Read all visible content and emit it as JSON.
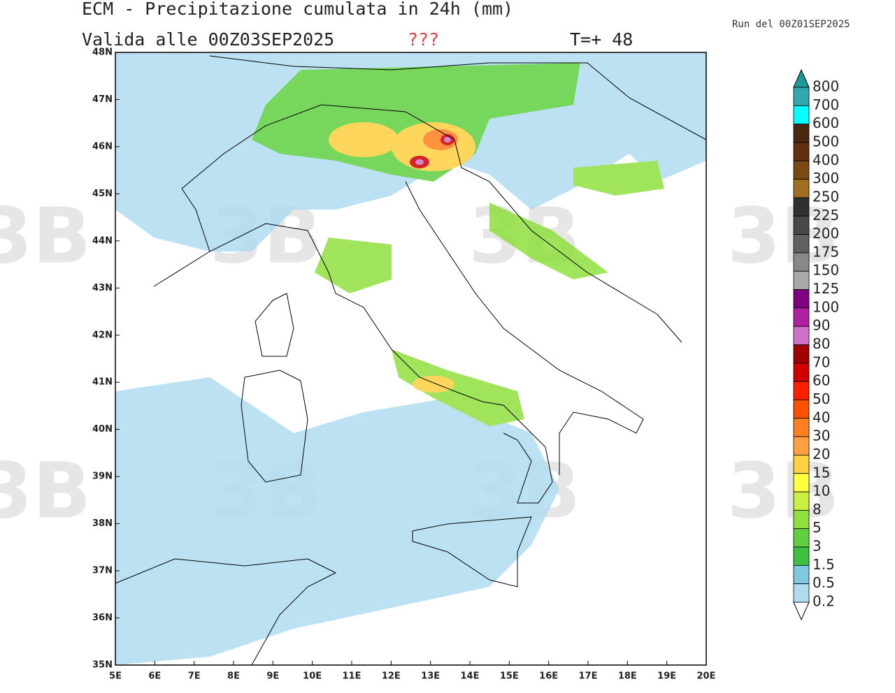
{
  "header": {
    "title": "ECM - Precipitazione cumulata in 24h (mm)",
    "valid": "Valida alle 00Z03SEP2025",
    "flag": "???",
    "step": "T=+ 48",
    "run": "Run del 00Z01SEP2025"
  },
  "map": {
    "lon_range": [
      5,
      20
    ],
    "lat_range": [
      35,
      48
    ],
    "lon_ticks": [
      {
        "value": 5,
        "label": "5E"
      },
      {
        "value": 6,
        "label": "6E"
      },
      {
        "value": 7,
        "label": "7E"
      },
      {
        "value": 8,
        "label": "8E"
      },
      {
        "value": 9,
        "label": "9E"
      },
      {
        "value": 10,
        "label": "10E"
      },
      {
        "value": 11,
        "label": "11E"
      },
      {
        "value": 12,
        "label": "12E"
      },
      {
        "value": 13,
        "label": "13E"
      },
      {
        "value": 14,
        "label": "14E"
      },
      {
        "value": 15,
        "label": "15E"
      },
      {
        "value": 16,
        "label": "16E"
      },
      {
        "value": 17,
        "label": "17E"
      },
      {
        "value": 18,
        "label": "18E"
      },
      {
        "value": 19,
        "label": "19E"
      },
      {
        "value": 20,
        "label": "20E"
      }
    ],
    "lat_ticks": [
      {
        "value": 35,
        "label": "35N"
      },
      {
        "value": 36,
        "label": "36N"
      },
      {
        "value": 37,
        "label": "37N"
      },
      {
        "value": 38,
        "label": "38N"
      },
      {
        "value": 39,
        "label": "39N"
      },
      {
        "value": 40,
        "label": "40N"
      },
      {
        "value": 41,
        "label": "41N"
      },
      {
        "value": 42,
        "label": "42N"
      },
      {
        "value": 43,
        "label": "43N"
      },
      {
        "value": 44,
        "label": "44N"
      },
      {
        "value": 45,
        "label": "45N"
      },
      {
        "value": 46,
        "label": "46N"
      },
      {
        "value": 47,
        "label": "47N"
      },
      {
        "value": 48,
        "label": "48N"
      }
    ]
  },
  "legend": {
    "levels": [
      800,
      700,
      600,
      500,
      400,
      300,
      250,
      225,
      200,
      175,
      150,
      125,
      100,
      90,
      80,
      70,
      60,
      50,
      40,
      30,
      20,
      15,
      10,
      8,
      5,
      3,
      1.5,
      0.5,
      0.2
    ],
    "colors": [
      "#30a8b0",
      "#00ffff",
      "#4a2810",
      "#603010",
      "#7a4a14",
      "#a07020",
      "#303030",
      "#484848",
      "#606060",
      "#888888",
      "#a8a8a8",
      "#800080",
      "#b020a0",
      "#d070c8",
      "#a00000",
      "#d00000",
      "#ff2000",
      "#ff5000",
      "#ff8020",
      "#ffa040",
      "#ffd040",
      "#ffff40",
      "#c8f040",
      "#90e040",
      "#60d040",
      "#40c040",
      "#80c8e0",
      "#b0dcf0",
      "#e0f0fa"
    ],
    "over_color": "#1a9a9a",
    "under_color": "#ffffff"
  },
  "watermark": "3B"
}
